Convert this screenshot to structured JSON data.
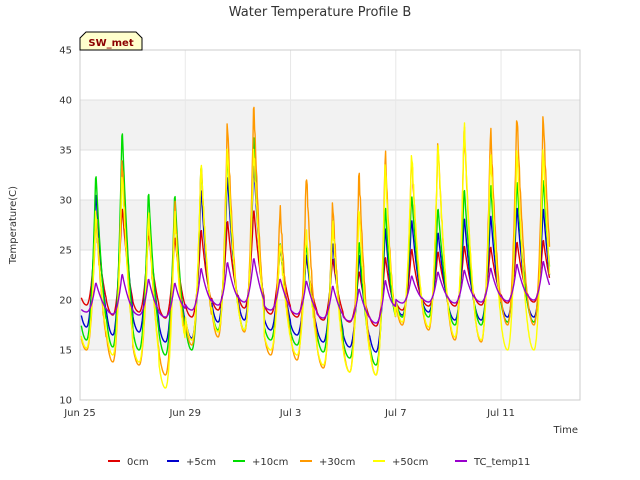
{
  "chart_data": {
    "type": "line",
    "title": "Water Temperature Profile B",
    "xlabel": "Time",
    "ylabel": "Temperature(C)",
    "badge": "SW_met",
    "ylim": [
      10,
      45
    ],
    "yticks": [
      10,
      15,
      20,
      25,
      30,
      35,
      40,
      45
    ],
    "xlim": [
      "2024-06-25",
      "2024-07-14"
    ],
    "xticks": [
      {
        "date": "2024-06-25",
        "label": "Jun 25"
      },
      {
        "date": "2024-06-29",
        "label": "Jun 29"
      },
      {
        "date": "2024-07-03",
        "label": "Jul 3"
      },
      {
        "date": "2024-07-07",
        "label": "Jul 7"
      },
      {
        "date": "2024-07-11",
        "label": "Jul 11"
      }
    ],
    "legend_position": "bottom",
    "grid": true,
    "daily": {
      "dates": [
        "2024-06-25",
        "2024-06-26",
        "2024-06-27",
        "2024-06-28",
        "2024-06-29",
        "2024-06-30",
        "2024-07-01",
        "2024-07-02",
        "2024-07-03",
        "2024-07-04",
        "2024-07-05",
        "2024-07-06",
        "2024-07-07",
        "2024-07-08",
        "2024-07-09",
        "2024-07-10",
        "2024-07-11",
        "2024-07-12"
      ],
      "series": [
        {
          "name": "0cm",
          "color": "#e00000",
          "min": [
            19.5,
            18.5,
            18.8,
            18.2,
            18.3,
            19.0,
            19.2,
            18.6,
            18.3,
            18.0,
            17.8,
            17.4,
            19.0,
            19.4,
            19.4,
            19.5,
            19.7,
            19.8
          ],
          "max": [
            28.0,
            29.5,
            27.0,
            26.5,
            27.3,
            28.2,
            29.3,
            25.3,
            24.4,
            24.3,
            23.0,
            24.5,
            25.3,
            25.0,
            25.6,
            25.5,
            26.0,
            26.2
          ]
        },
        {
          "name": "+5cm",
          "color": "#0000cc",
          "min": [
            17.3,
            16.5,
            16.8,
            15.8,
            16.2,
            17.8,
            18.0,
            17.0,
            16.5,
            15.8,
            15.3,
            14.8,
            18.5,
            18.8,
            18.0,
            18.0,
            18.3,
            18.3
          ],
          "max": [
            31.0,
            34.6,
            29.0,
            28.7,
            31.5,
            32.8,
            34.0,
            25.5,
            24.8,
            26.0,
            24.8,
            27.6,
            28.3,
            27.0,
            28.5,
            28.8,
            29.6,
            29.5
          ]
        },
        {
          "name": "+10cm",
          "color": "#00dd00",
          "min": [
            16.0,
            15.3,
            15.0,
            14.5,
            15.0,
            17.0,
            17.0,
            16.0,
            15.5,
            14.8,
            14.2,
            13.5,
            18.3,
            18.3,
            17.5,
            17.5,
            17.8,
            17.8
          ],
          "max": [
            33.0,
            37.5,
            31.2,
            31.0,
            34.0,
            35.0,
            37.0,
            26.0,
            26.0,
            28.5,
            26.2,
            29.8,
            30.8,
            29.5,
            31.5,
            32.0,
            32.3,
            32.5
          ]
        },
        {
          "name": "+30cm",
          "color": "#ff9900",
          "min": [
            15.0,
            13.8,
            13.5,
            12.5,
            15.5,
            16.3,
            16.8,
            14.5,
            14.0,
            13.2,
            12.8,
            12.5,
            17.5,
            17.0,
            16.0,
            15.8,
            17.5,
            17.5
          ],
          "max": [
            28.5,
            34.5,
            28.5,
            30.0,
            34.0,
            38.2,
            40.0,
            29.5,
            33.0,
            30.0,
            33.2,
            35.3,
            34.5,
            36.0,
            37.8,
            37.6,
            39.0,
            38.8
          ]
        },
        {
          "name": "+50cm",
          "color": "#ffff00",
          "min": [
            15.2,
            14.5,
            13.8,
            11.2,
            16.0,
            16.8,
            17.0,
            15.0,
            14.5,
            13.5,
            12.8,
            12.5,
            17.8,
            17.3,
            16.3,
            16.0,
            15.0,
            15.0
          ],
          "max": [
            29.0,
            33.0,
            29.0,
            29.0,
            34.0,
            35.5,
            35.5,
            26.0,
            27.0,
            28.0,
            29.5,
            34.0,
            35.0,
            36.0,
            38.0,
            35.0,
            35.5,
            35.5
          ]
        },
        {
          "name": "TC_temp11",
          "color": "#9900cc",
          "min": [
            18.8,
            18.6,
            18.5,
            18.3,
            19.0,
            19.5,
            19.8,
            19.0,
            18.6,
            18.2,
            17.9,
            17.7,
            19.7,
            19.8,
            19.7,
            19.8,
            19.9,
            20.0
          ],
          "max": [
            21.8,
            22.7,
            22.2,
            21.8,
            23.3,
            23.9,
            24.3,
            22.2,
            22.0,
            21.5,
            21.2,
            22.1,
            22.5,
            22.9,
            23.1,
            23.3,
            23.7,
            24.0
          ]
        }
      ]
    }
  }
}
